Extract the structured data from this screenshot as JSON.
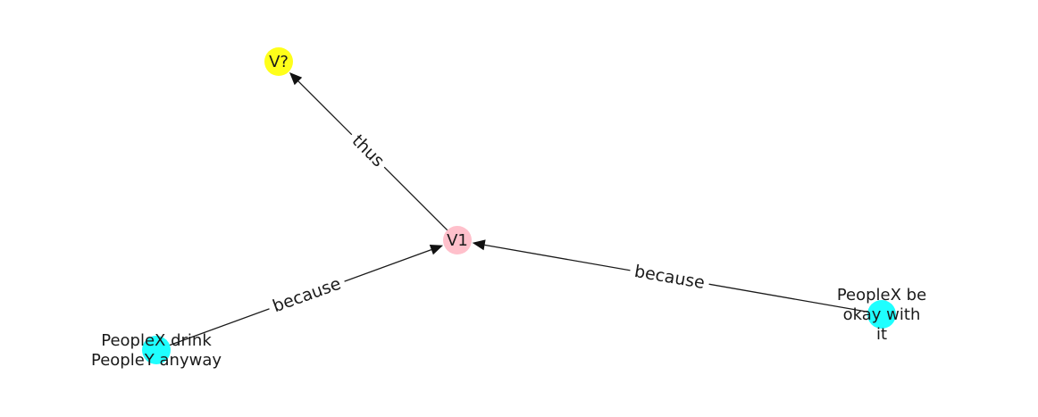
{
  "graph": {
    "nodes": [
      {
        "id": "n_v2",
        "label": [
          "V?"
        ],
        "color": "#ffff1a"
      },
      {
        "id": "n_v1",
        "label": [
          "V1"
        ],
        "color": "#ffc0cb"
      },
      {
        "id": "n_drink",
        "label": [
          "PeopleX drink",
          "PeopleY anyway"
        ],
        "color": "#1fffff"
      },
      {
        "id": "n_okay",
        "label": [
          "PeopleX be",
          "okay with",
          "it"
        ],
        "color": "#1fffff"
      }
    ],
    "edges": [
      {
        "id": "e_thus",
        "from": "n_v1",
        "to": "n_v2",
        "label": "thus"
      },
      {
        "id": "e_because_1",
        "from": "n_drink",
        "to": "n_v1",
        "label": "because"
      },
      {
        "id": "e_because_2",
        "from": "n_okay",
        "to": "n_v1",
        "label": "because"
      }
    ]
  }
}
